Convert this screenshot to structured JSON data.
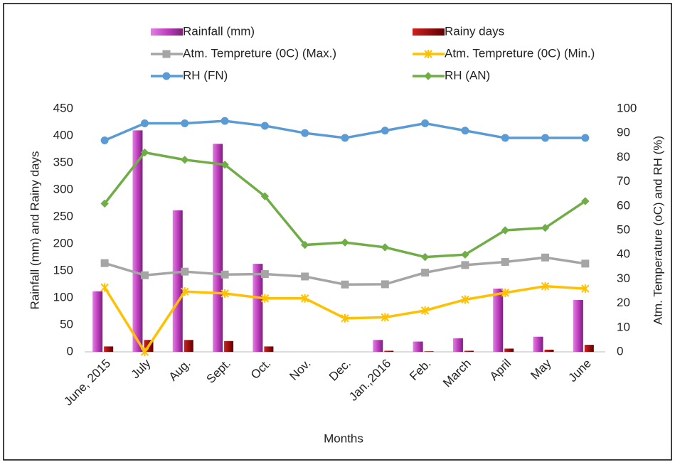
{
  "chart_data": {
    "type": "combo",
    "categories": [
      "June, 2015",
      "July",
      "Aug.",
      "Sept.",
      "Oct.",
      "Nov.",
      "Dec.",
      "Jan.,2016",
      "Feb.",
      "March",
      "April",
      "May",
      "June"
    ],
    "x_label": "Months",
    "y_label": "Rainfall (mm) and Rainy days",
    "y2_label": "Atm. Temperature (oC) and RH (%)",
    "ylim": [
      0,
      450
    ],
    "yticks": [
      0,
      50,
      100,
      150,
      200,
      250,
      300,
      350,
      400,
      450
    ],
    "y2lim": [
      0,
      100
    ],
    "y2ticks": [
      0,
      10,
      20,
      30,
      40,
      50,
      60,
      70,
      80,
      90,
      100
    ],
    "series": [
      {
        "name": "Rainfall (mm)",
        "type": "bar",
        "color": "#c03fc0",
        "values": [
          112,
          410,
          262,
          385,
          163,
          0,
          0,
          22,
          19,
          25,
          117,
          28,
          96
        ]
      },
      {
        "name": "Rainy days",
        "type": "bar",
        "color": "#a00000",
        "values": [
          10,
          22,
          22,
          20,
          10,
          0,
          0,
          2,
          1,
          2,
          6,
          4,
          13
        ]
      },
      {
        "name": "Atm. Tempreture (0C) (Max.)",
        "type": "line",
        "axis": "y2",
        "marker": "square",
        "color": "#a5a5a5",
        "values": [
          36.5,
          31.5,
          33,
          31.8,
          32,
          31,
          27.7,
          27.8,
          32.6,
          35.7,
          37,
          38.8,
          36.3
        ]
      },
      {
        "name": "Atm. Tempreture (0C) (Min.)",
        "type": "line",
        "axis": "y2",
        "marker": "star",
        "color": "#ffc000",
        "values": [
          26.5,
          0,
          24.8,
          24,
          22,
          22,
          13.8,
          14.2,
          17,
          21.5,
          24.3,
          27,
          26
        ]
      },
      {
        "name": "RH (FN)",
        "type": "line",
        "axis": "y2",
        "marker": "circle",
        "color": "#5b9bd5",
        "values": [
          87,
          94,
          94,
          95,
          93,
          90,
          88,
          91,
          94,
          91,
          88,
          88,
          88
        ]
      },
      {
        "name": "RH (AN)",
        "type": "line",
        "axis": "y2",
        "marker": "diamond",
        "color": "#70ad47",
        "values": [
          61,
          82,
          79,
          77,
          64,
          44,
          45,
          43,
          39,
          40,
          50,
          51,
          62
        ]
      }
    ]
  }
}
